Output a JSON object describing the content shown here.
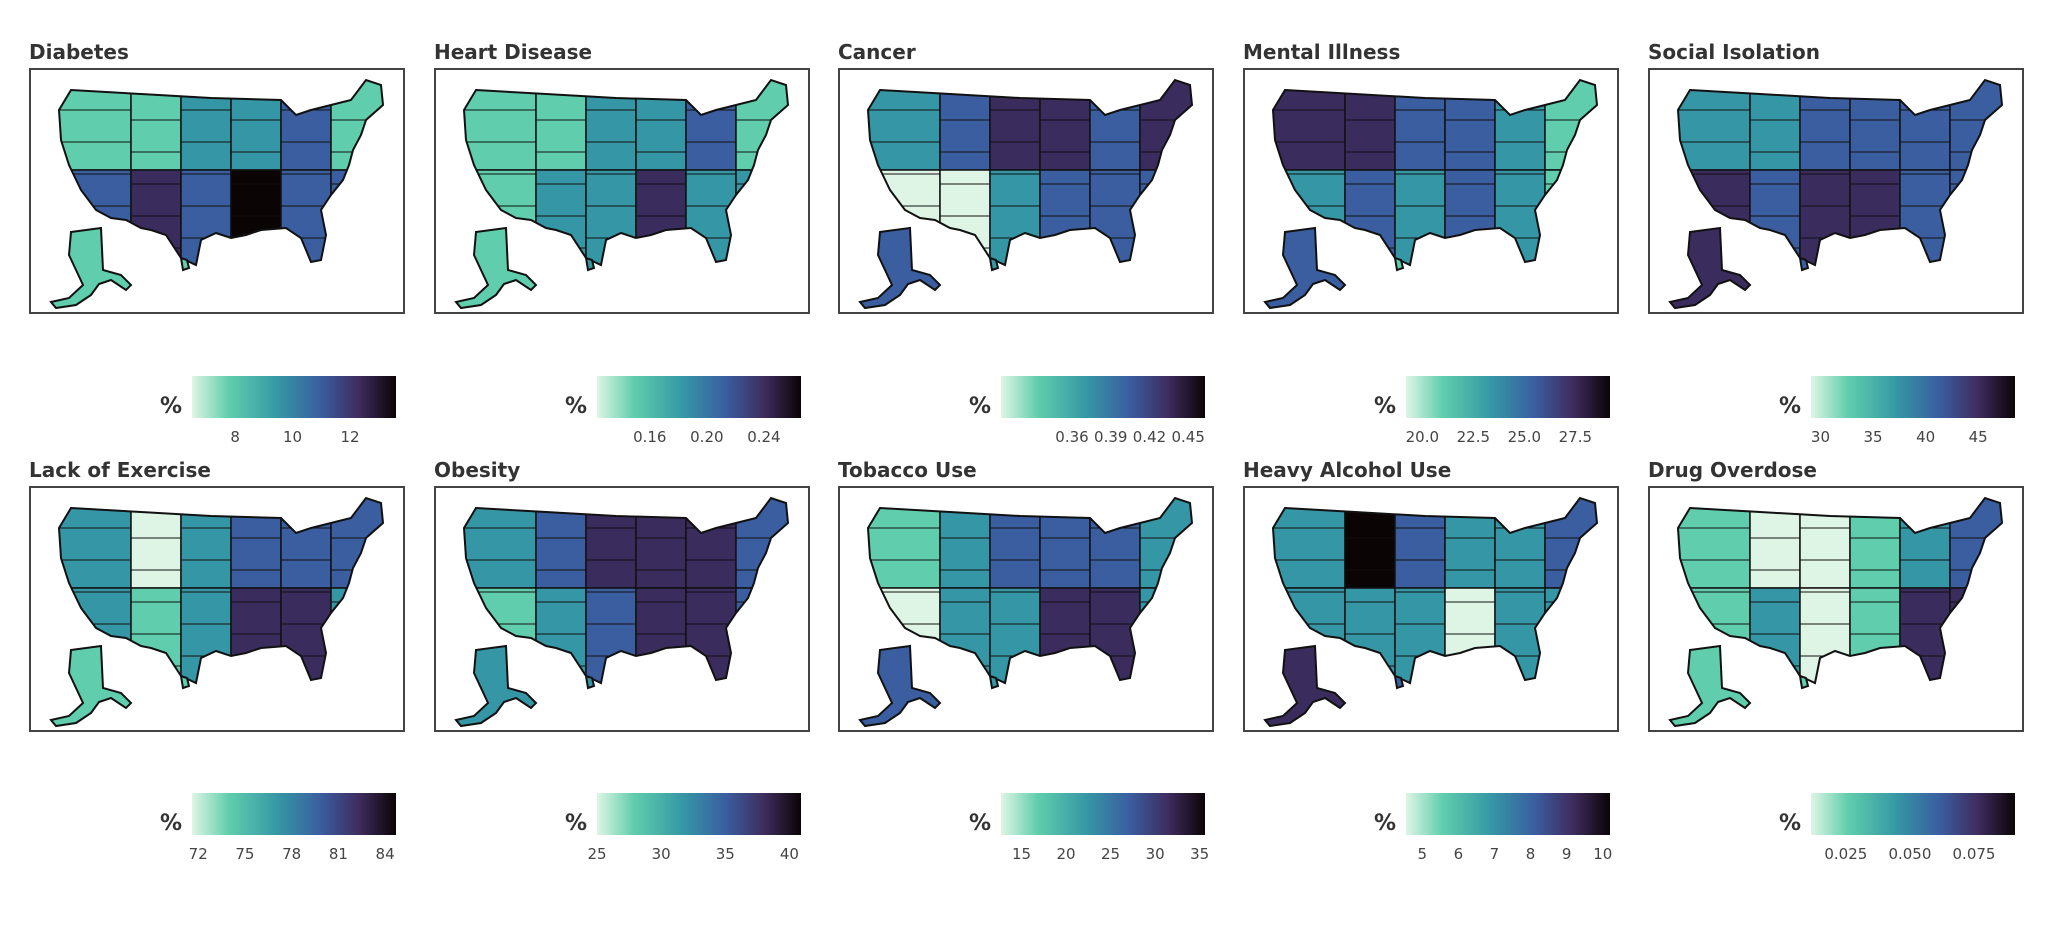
{
  "palette": {
    "L": "#def5e5",
    "G": "#60ceac",
    "T": "#3597a5",
    "B": "#3a5ea0",
    "P": "#3b2c5e",
    "K": "#0b0405"
  },
  "legend_unit": "%",
  "chart_data": [
    {
      "type": "choropleth",
      "title": "Diabetes",
      "colorbar_range": [
        6.5,
        13.6
      ],
      "ticks": [
        "8",
        "10",
        "12"
      ],
      "regions_north": "GGTTBG",
      "regions_south": "BPBKBB",
      "alaska": "G",
      "hawaii": "G"
    },
    {
      "type": "choropleth",
      "title": "Heart Disease",
      "colorbar_range": [
        0.123,
        0.266
      ],
      "ticks": [
        "0.16",
        "0.20",
        "0.24"
      ],
      "regions_north": "GGTTBG",
      "regions_south": "GTTPTT",
      "alaska": "G",
      "hawaii": "T"
    },
    {
      "type": "choropleth",
      "title": "Cancer",
      "colorbar_range": [
        0.305,
        0.463
      ],
      "ticks": [
        "0.36",
        "0.39",
        "0.42",
        "0.45"
      ],
      "regions_north": "TBPPBP",
      "regions_south": "LLTBBB",
      "alaska": "B",
      "hawaii": "T"
    },
    {
      "type": "choropleth",
      "title": "Mental Illness",
      "colorbar_range": [
        19.2,
        29.2
      ],
      "ticks": [
        "20.0",
        "22.5",
        "25.0",
        "27.5"
      ],
      "regions_north": "PPBBTG",
      "regions_south": "TBTBTG",
      "alaska": "B",
      "hawaii": "G"
    },
    {
      "type": "choropleth",
      "title": "Social Isolation",
      "colorbar_range": [
        29.1,
        48.5
      ],
      "ticks": [
        "30",
        "35",
        "40",
        "45"
      ],
      "regions_north": "TTBBBB",
      "regions_south": "PBPPBB",
      "alaska": "P",
      "hawaii": "B"
    },
    {
      "type": "choropleth",
      "title": "Lack of Exercise",
      "colorbar_range": [
        71.6,
        84.7
      ],
      "ticks": [
        "72",
        "75",
        "78",
        "81",
        "84"
      ],
      "regions_north": "TLTBBB",
      "regions_south": "TGTPPT",
      "alaska": "G",
      "hawaii": "G"
    },
    {
      "type": "choropleth",
      "title": "Obesity",
      "colorbar_range": [
        25,
        40.9
      ],
      "ticks": [
        "25",
        "30",
        "35",
        "40"
      ],
      "regions_north": "TBPPPB",
      "regions_south": "GTBPPB",
      "alaska": "T",
      "hawaii": "T"
    },
    {
      "type": "choropleth",
      "title": "Tobacco Use",
      "colorbar_range": [
        12.7,
        35.6
      ],
      "ticks": [
        "15",
        "20",
        "25",
        "30",
        "35"
      ],
      "regions_north": "GTBBBT",
      "regions_south": "LTTPPT",
      "alaska": "B",
      "hawaii": "T"
    },
    {
      "type": "choropleth",
      "title": "Heavy Alcohol Use",
      "colorbar_range": [
        4.55,
        10.2
      ],
      "ticks": [
        "5",
        "6",
        "7",
        "8",
        "9",
        "10"
      ],
      "regions_north": "TKBTTB",
      "regions_south": "TTTLTT",
      "alaska": "P",
      "hawaii": "B"
    },
    {
      "type": "choropleth",
      "title": "Drug Overdose",
      "colorbar_range": [
        0.0114,
        0.091
      ],
      "ticks": [
        "0.025",
        "0.050",
        "0.075"
      ],
      "regions_north": "GLLGTB",
      "regions_south": "GTLGPP",
      "alaska": "G",
      "hawaii": "G"
    }
  ]
}
